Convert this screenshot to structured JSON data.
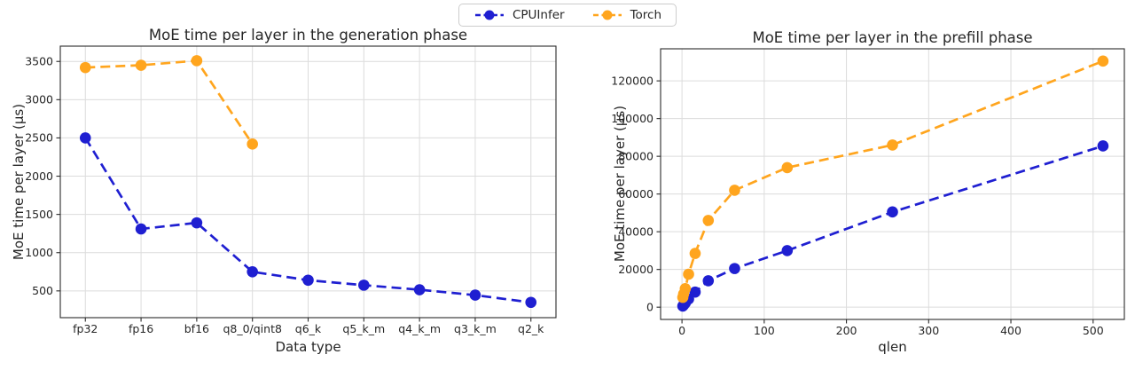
{
  "legend": {
    "items": [
      {
        "label": "CPUInfer",
        "color": "#1f1fd1"
      },
      {
        "label": "Torch",
        "color": "#ffa51e"
      }
    ]
  },
  "chart_data": [
    {
      "type": "line",
      "title": "MoE time per layer in the generation phase",
      "xlabel": "Data type",
      "ylabel": "MoE time per layer (μs)",
      "categories": [
        "fp32",
        "fp16",
        "bf16",
        "q8_0/qint8",
        "q6_k",
        "q5_k_m",
        "q4_k_m",
        "q3_k_m",
        "q2_k"
      ],
      "ylim": [
        150,
        3700
      ],
      "yticks": [
        500,
        1000,
        1500,
        2000,
        2500,
        3000,
        3500
      ],
      "grid": true,
      "line_style": "dashed",
      "marker": "circle",
      "series": [
        {
          "name": "CPUInfer",
          "color": "#1f1fd1",
          "values": [
            2500,
            1310,
            1390,
            750,
            640,
            575,
            515,
            445,
            350
          ]
        },
        {
          "name": "Torch",
          "color": "#ffa51e",
          "values": [
            3420,
            3450,
            3510,
            2420,
            null,
            null,
            null,
            null,
            null
          ]
        }
      ]
    },
    {
      "type": "line",
      "title": "MoE time per layer in the prefill phase",
      "xlabel": "qlen",
      "ylabel": "MoE time per layer (μs)",
      "x": [
        1,
        2,
        4,
        8,
        16,
        32,
        64,
        128,
        256,
        512
      ],
      "xlim": [
        -26,
        538
      ],
      "xticks": [
        0,
        100,
        200,
        300,
        400,
        500
      ],
      "ylim": [
        -6500,
        137000
      ],
      "yticks": [
        0,
        20000,
        40000,
        60000,
        80000,
        100000,
        120000
      ],
      "grid": true,
      "line_style": "dashed",
      "marker": "circle",
      "series": [
        {
          "name": "CPUInfer",
          "color": "#1f1fd1",
          "values": [
            600,
            1100,
            2200,
            4300,
            8000,
            14000,
            20500,
            30000,
            50500,
            85500
          ]
        },
        {
          "name": "Torch",
          "color": "#ffa51e",
          "values": [
            5200,
            7000,
            9800,
            17500,
            28500,
            46000,
            62000,
            74000,
            86000,
            130500
          ]
        }
      ]
    }
  ]
}
